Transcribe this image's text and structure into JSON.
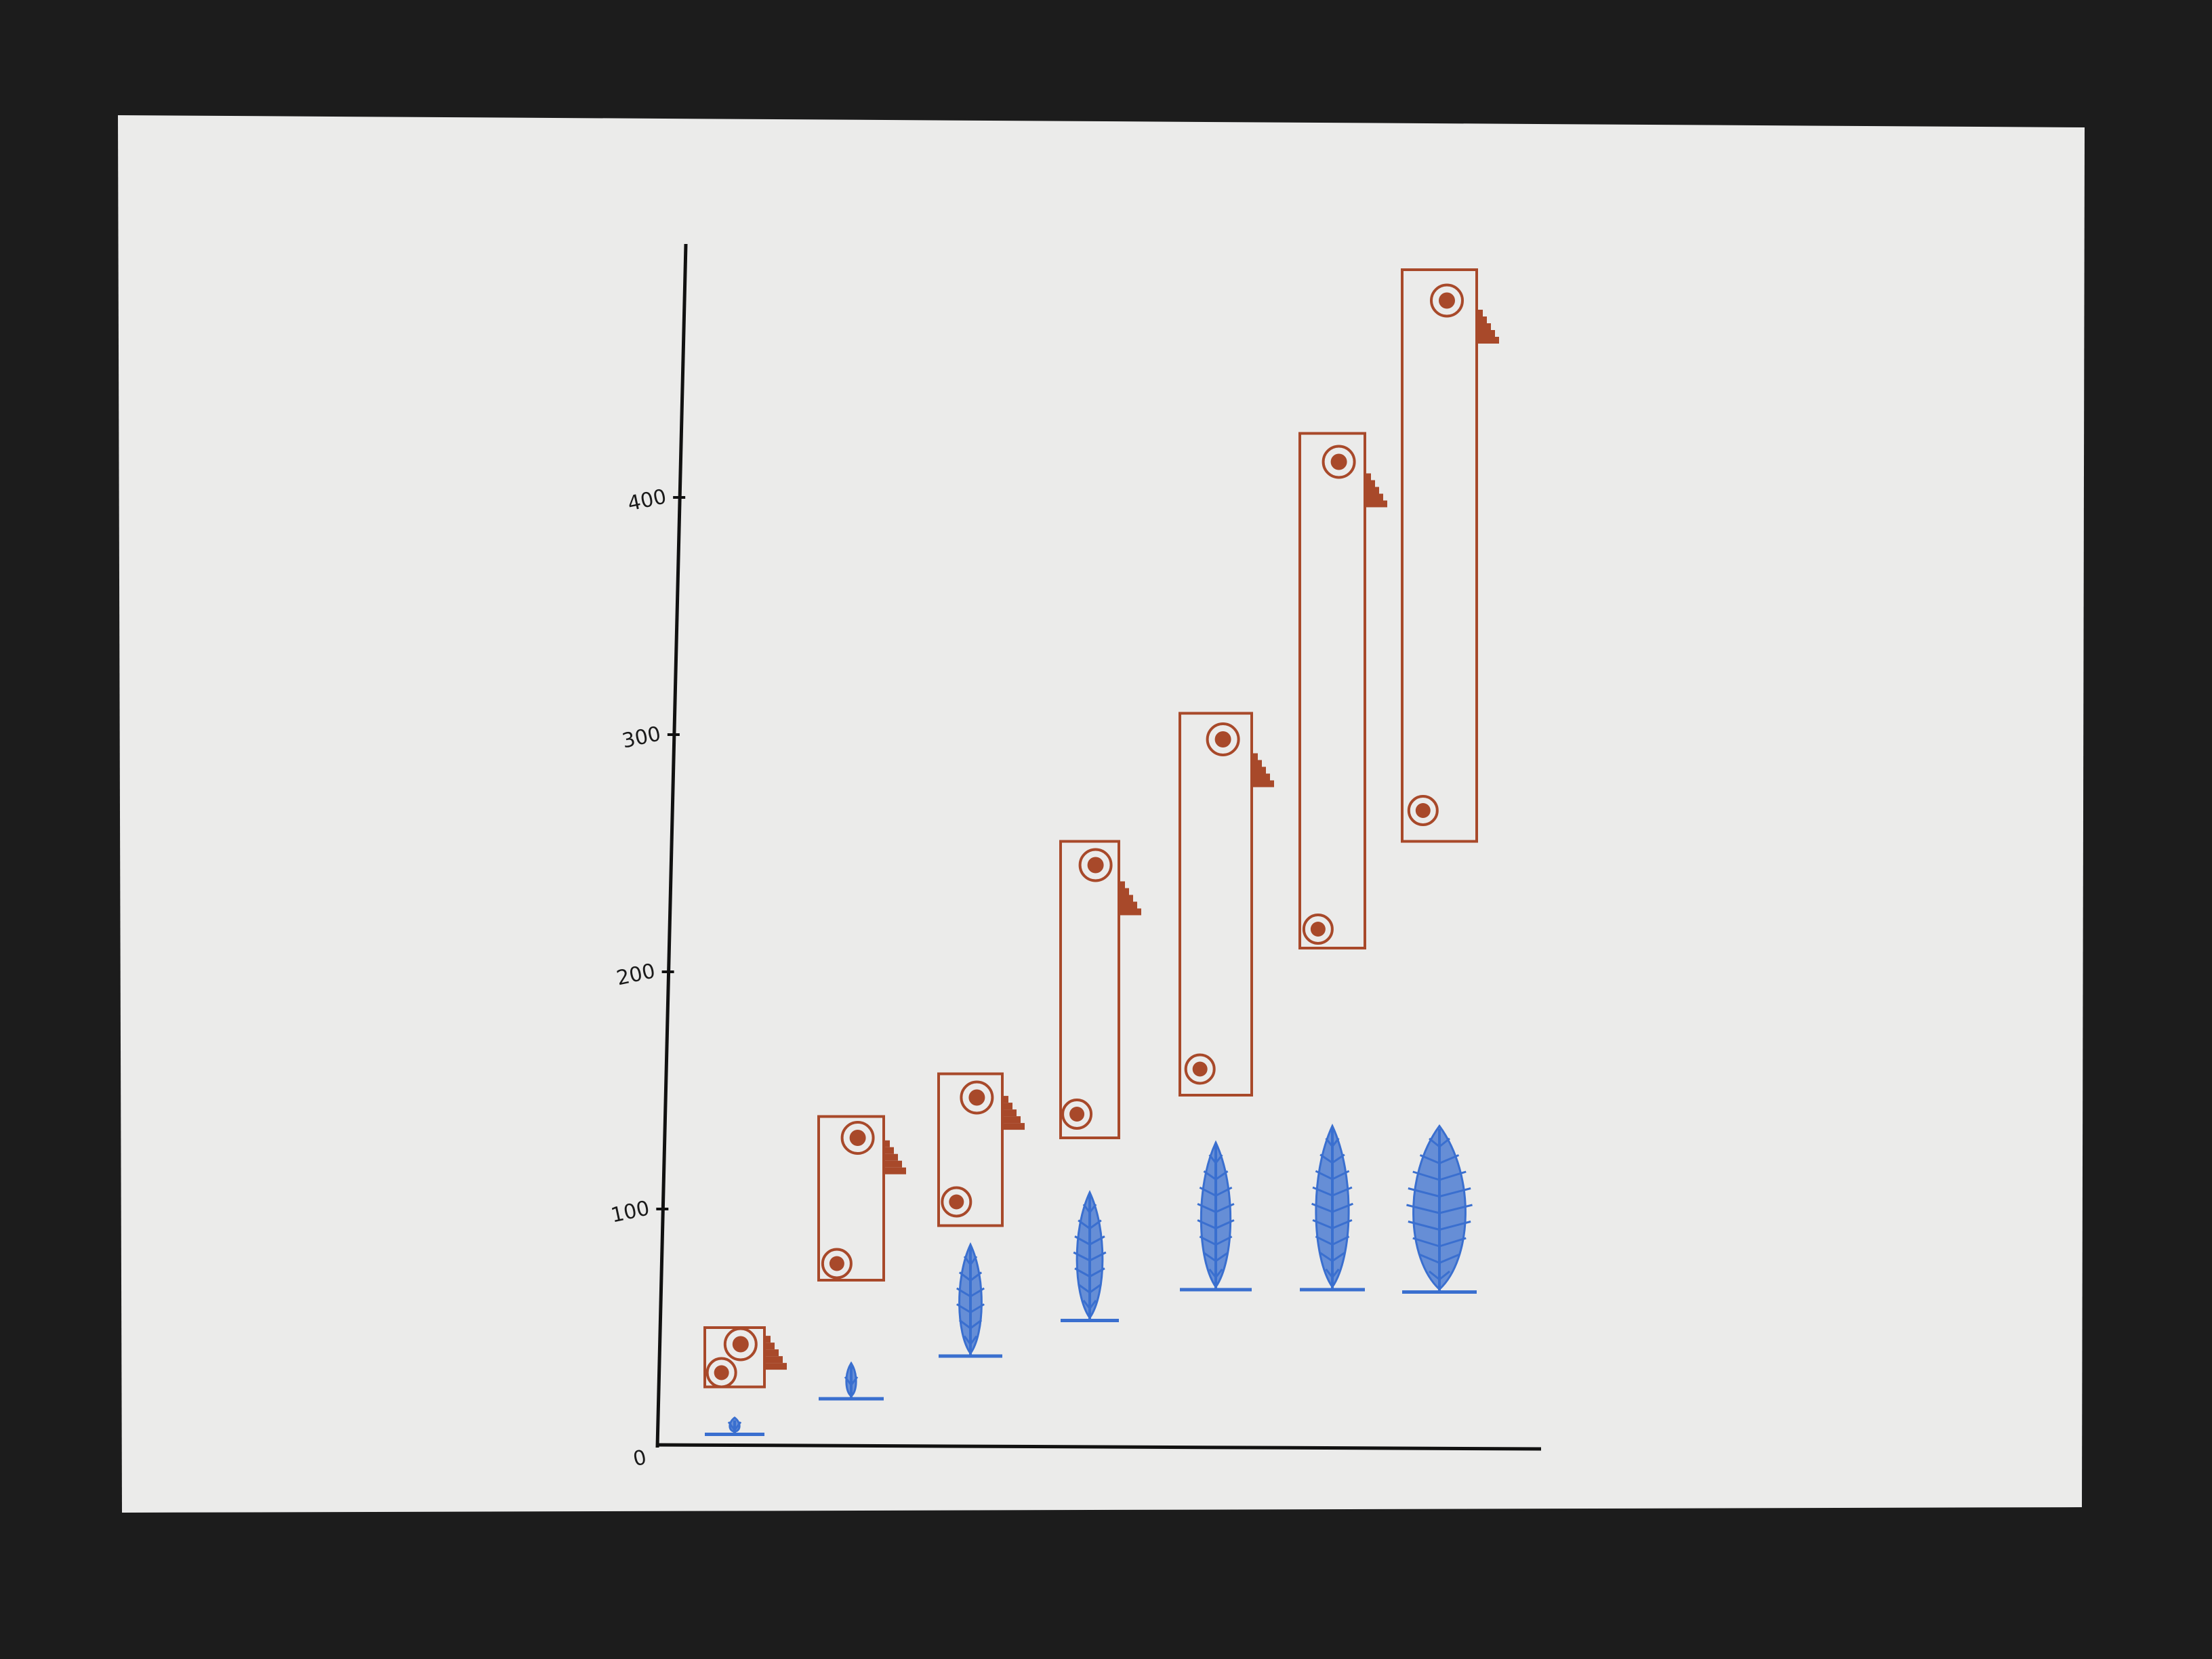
{
  "colors": {
    "background": "#1c1c1c",
    "paper": "#ebebea",
    "axis": "#111111",
    "range_marker": "#a8492a",
    "plant_marker": "#3a6fcf"
  },
  "chart_data": {
    "type": "bar",
    "title": "",
    "xlabel": "",
    "ylabel": "",
    "ylim": [
      0,
      500
    ],
    "yticks": [
      {
        "value": 0,
        "label": "0"
      },
      {
        "value": 100,
        "label": "100"
      },
      {
        "value": 200,
        "label": "200"
      },
      {
        "value": 300,
        "label": "300"
      },
      {
        "value": 400,
        "label": "400"
      }
    ],
    "categories": [
      "",
      "",
      "",
      "",
      "",
      "",
      ""
    ],
    "series": [
      {
        "kind": "floating-range",
        "color": "#a8492a",
        "values": [
          {
            "low": 25,
            "high": 50,
            "low_point": 31,
            "high_point": 43
          },
          {
            "low": 70,
            "high": 139,
            "low_point": 77,
            "high_point": 130
          },
          {
            "low": 93,
            "high": 157,
            "low_point": 103,
            "high_point": 147
          },
          {
            "low": 130,
            "high": 255,
            "low_point": 140,
            "high_point": 245
          },
          {
            "low": 148,
            "high": 309,
            "low_point": 159,
            "high_point": 298
          },
          {
            "low": 210,
            "high": 427,
            "low_point": 218,
            "high_point": 415
          },
          {
            "low": 255,
            "high": 496,
            "low_point": 268,
            "high_point": 483
          }
        ]
      },
      {
        "kind": "pictogram-plant",
        "color": "#3a6fcf",
        "values": [
          {
            "base": 5,
            "top": 12
          },
          {
            "base": 20,
            "top": 35
          },
          {
            "base": 38,
            "top": 85
          },
          {
            "base": 53,
            "top": 107
          },
          {
            "base": 66,
            "top": 128
          },
          {
            "base": 66,
            "top": 135
          },
          {
            "base": 65,
            "top": 135
          }
        ]
      }
    ],
    "grid": false,
    "legend": "none"
  }
}
